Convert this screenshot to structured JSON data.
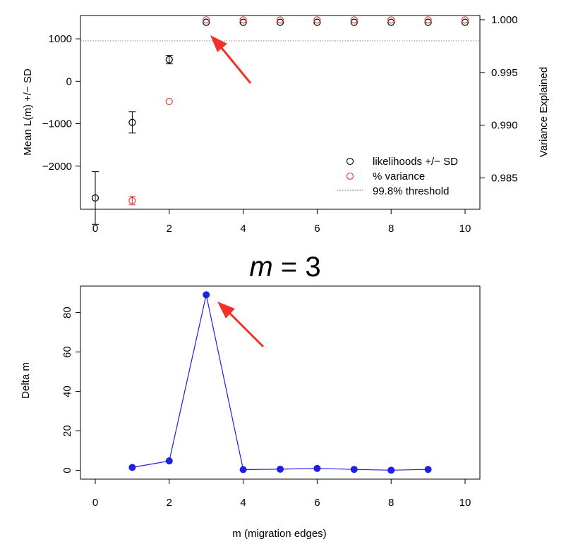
{
  "chart_data": [
    {
      "type": "scatter",
      "title": "",
      "xlabel": "",
      "ylabel": "Mean L(m) +/− SD",
      "ylabel_right": "Variance Explained",
      "xlim": [
        0,
        10
      ],
      "ylim": [
        -2900,
        1450
      ],
      "ylim_right": [
        0.9825,
        1.0
      ],
      "x_ticks": [
        0,
        2,
        4,
        6,
        8,
        10
      ],
      "x_tick_labels": [
        "0",
        "2",
        "4",
        "6",
        "8",
        "10"
      ],
      "y_ticks": [
        -2000,
        -1000,
        0,
        1000
      ],
      "y_tick_labels": [
        "−2000",
        "−1000",
        "0",
        "1000"
      ],
      "y_right_ticks": [
        0.985,
        0.99,
        0.995,
        1.0
      ],
      "y_right_tick_labels": [
        "0.985",
        "0.990",
        "0.995",
        "1.000"
      ],
      "threshold": 0.998,
      "series": [
        {
          "name": "likelihoods +/− SD",
          "color": "#000000",
          "axis": "left",
          "x": [
            0,
            1,
            2,
            3,
            4,
            5,
            6,
            7,
            8,
            9,
            10
          ],
          "y": [
            -2750,
            -970,
            510,
            1390,
            1390,
            1390,
            1390,
            1390,
            1390,
            1390,
            1390
          ],
          "sd": [
            620,
            250,
            100,
            20,
            20,
            20,
            20,
            20,
            20,
            20,
            20
          ]
        },
        {
          "name": "% variance",
          "color": "#e83a3a",
          "axis": "right",
          "x": [
            1,
            2,
            3,
            4,
            5,
            6,
            7,
            8,
            9,
            10
          ],
          "y": [
            0.98285,
            0.99225,
            0.99998,
            0.99998,
            0.99998,
            0.99998,
            0.99998,
            0.99998,
            0.99998,
            0.99998
          ],
          "sd": [
            0.0004,
            2e-05,
            1e-05,
            1e-05,
            1e-05,
            1e-05,
            1e-05,
            1e-05,
            1e-05,
            1e-05
          ]
        }
      ],
      "legend": {
        "position": "bottom-right",
        "entries": [
          "likelihoods +/− SD",
          "% variance",
          "99.8% threshold"
        ]
      },
      "annotation_arrow_target": {
        "x": 3,
        "y": 1390
      }
    },
    {
      "type": "line",
      "title": "m = 3",
      "title_italic_part": "m",
      "title_rest": " = 3",
      "xlabel": "m (migration edges)",
      "ylabel": "Delta m",
      "xlim": [
        0,
        10
      ],
      "ylim": [
        -3,
        92
      ],
      "x_ticks": [
        0,
        2,
        4,
        6,
        8,
        10
      ],
      "x_tick_labels": [
        "0",
        "2",
        "4",
        "6",
        "8",
        "10"
      ],
      "y_ticks": [
        0,
        20,
        40,
        60,
        80
      ],
      "y_tick_labels": [
        "0",
        "20",
        "40",
        "60",
        "80"
      ],
      "color": "#1f1fe6",
      "x": [
        1,
        2,
        3,
        4,
        5,
        6,
        7,
        8,
        9
      ],
      "y": [
        1.5,
        4.8,
        89,
        0.4,
        0.6,
        1.0,
        0.5,
        0.1,
        0.5
      ],
      "annotation_arrow_target": {
        "x": 3,
        "y": 89
      }
    }
  ]
}
